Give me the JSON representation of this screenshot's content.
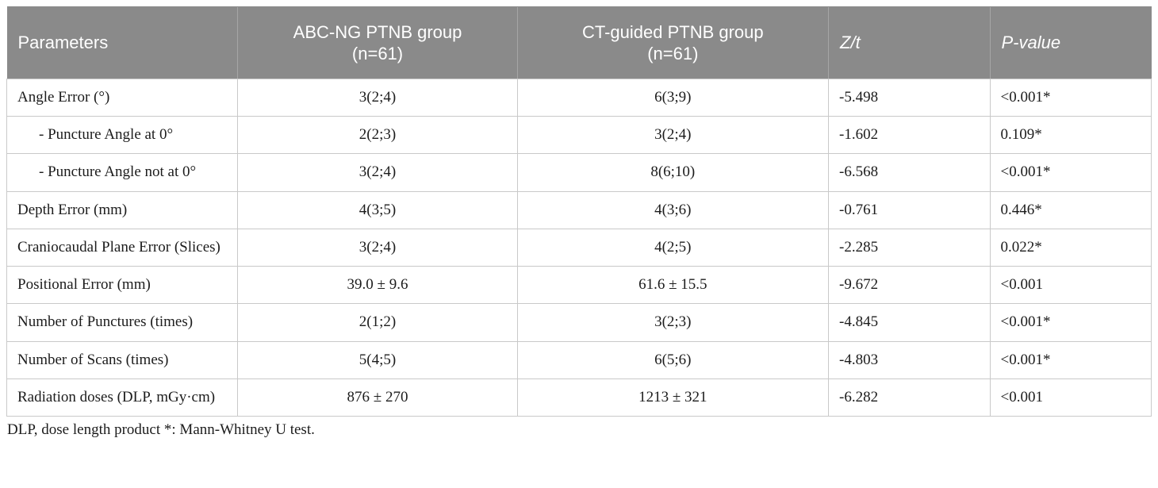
{
  "colors": {
    "header_bg": "#8a8a8a",
    "header_text": "#ffffff",
    "body_text": "#1c1c1c",
    "grid_line": "#c9c9c9"
  },
  "table": {
    "headers": [
      {
        "label": "Parameters",
        "italic": false
      },
      {
        "label": "ABC-NG PTNB group\n(n=61)",
        "italic": false
      },
      {
        "label": "CT-guided PTNB group\n(n=61)",
        "italic": false
      },
      {
        "label": "Z/t",
        "italic": true
      },
      {
        "label": "P-value",
        "italic": true
      }
    ],
    "rows": [
      {
        "param": "Angle Error (°)",
        "indent": false,
        "abc_ng": "3(2;4)",
        "ct_guided": "6(3;9)",
        "z_t": "-5.498",
        "p_value": "<0.001*"
      },
      {
        "param": "- Puncture Angle at 0°",
        "indent": true,
        "abc_ng": "2(2;3)",
        "ct_guided": "3(2;4)",
        "z_t": "-1.602",
        "p_value": "0.109*"
      },
      {
        "param": "- Puncture Angle not at 0°",
        "indent": true,
        "abc_ng": "3(2;4)",
        "ct_guided": "8(6;10)",
        "z_t": "-6.568",
        "p_value": "<0.001*"
      },
      {
        "param": "Depth Error (mm)",
        "indent": false,
        "abc_ng": "4(3;5)",
        "ct_guided": "4(3;6)",
        "z_t": "-0.761",
        "p_value": "0.446*"
      },
      {
        "param": "Craniocaudal Plane Error (Slices)",
        "indent": false,
        "abc_ng": "3(2;4)",
        "ct_guided": "4(2;5)",
        "z_t": "-2.285",
        "p_value": "0.022*"
      },
      {
        "param": "Positional Error (mm)",
        "indent": false,
        "abc_ng": "39.0 ± 9.6",
        "ct_guided": "61.6 ± 15.5",
        "z_t": "-9.672",
        "p_value": "<0.001"
      },
      {
        "param": "Number of Punctures (times)",
        "indent": false,
        "abc_ng": "2(1;2)",
        "ct_guided": "3(2;3)",
        "z_t": "-4.845",
        "p_value": "<0.001*"
      },
      {
        "param": "Number of Scans (times)",
        "indent": false,
        "abc_ng": "5(4;5)",
        "ct_guided": "6(5;6)",
        "z_t": "-4.803",
        "p_value": "<0.001*"
      },
      {
        "param": "Radiation doses (DLP, mGy·cm)",
        "indent": false,
        "abc_ng": "876 ± 270",
        "ct_guided": "1213 ± 321",
        "z_t": "-6.282",
        "p_value": "<0.001"
      }
    ]
  },
  "footnote": "DLP, dose length product *: Mann-Whitney U test."
}
